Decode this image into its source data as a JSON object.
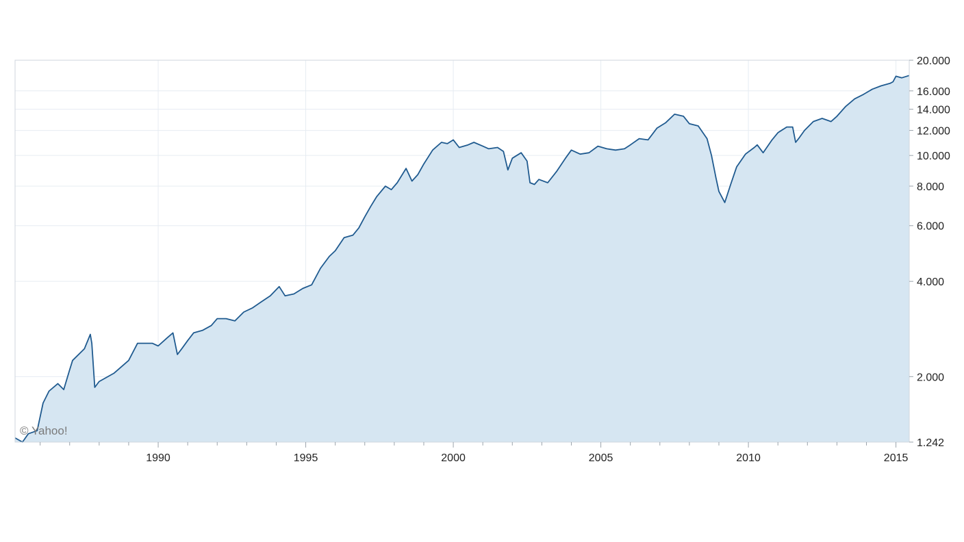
{
  "chart_data": {
    "type": "area",
    "title": "",
    "xlabel": "",
    "ylabel": "",
    "y_scale": "log",
    "xlim": [
      1985.15,
      2015.45
    ],
    "ylim": [
      1.242,
      20.0
    ],
    "grid": true,
    "legend": "none",
    "watermark": "© Yahoo!",
    "colors": {
      "line": "#1f5a8f",
      "fill": "#d6e6f2",
      "grid": "#e6ecf2",
      "axis": "#cfd6dd",
      "text": "#222222"
    },
    "x_ticks": [
      {
        "value": 1990,
        "label": "1990"
      },
      {
        "value": 1995,
        "label": "1995"
      },
      {
        "value": 2000,
        "label": "2000"
      },
      {
        "value": 2005,
        "label": "2005"
      },
      {
        "value": 2010,
        "label": "2010"
      },
      {
        "value": 2015,
        "label": "2015"
      }
    ],
    "y_ticks": [
      {
        "value": 20.0,
        "label": "20.000"
      },
      {
        "value": 16.0,
        "label": "16.000"
      },
      {
        "value": 14.0,
        "label": "14.000"
      },
      {
        "value": 12.0,
        "label": "12.000"
      },
      {
        "value": 10.0,
        "label": "10.000"
      },
      {
        "value": 8.0,
        "label": "8.000"
      },
      {
        "value": 6.0,
        "label": "6.000"
      },
      {
        "value": 4.0,
        "label": "4.000"
      },
      {
        "value": 2.0,
        "label": "2.000"
      },
      {
        "value": 1.242,
        "label": "1.242"
      }
    ],
    "series": [
      {
        "x": [
          1985.15,
          1985.4,
          1985.6,
          1985.9,
          1986.1,
          1986.3,
          1986.6,
          1986.8,
          1987.0,
          1987.1,
          1987.5,
          1987.7,
          1987.75,
          1987.85,
          1988.0,
          1988.5,
          1989.0,
          1989.3,
          1989.8,
          1990.0,
          1990.3,
          1990.5,
          1990.65,
          1990.8,
          1991.0,
          1991.2,
          1991.5,
          1991.8,
          1992.0,
          1992.3,
          1992.6,
          1992.9,
          1993.2,
          1993.5,
          1993.8,
          1994.1,
          1994.3,
          1994.6,
          1994.9,
          1995.2,
          1995.5,
          1995.8,
          1996.0,
          1996.3,
          1996.6,
          1996.8,
          1997.0,
          1997.2,
          1997.4,
          1997.7,
          1997.9,
          1998.1,
          1998.4,
          1998.6,
          1998.8,
          1999.0,
          1999.3,
          1999.6,
          1999.8,
          2000.0,
          2000.2,
          2000.5,
          2000.7,
          2001.0,
          2001.2,
          2001.5,
          2001.7,
          2001.85,
          2002.0,
          2002.3,
          2002.5,
          2002.6,
          2002.75,
          2002.9,
          2003.2,
          2003.5,
          2003.8,
          2004.0,
          2004.3,
          2004.6,
          2004.9,
          2005.2,
          2005.5,
          2005.8,
          2006.0,
          2006.3,
          2006.6,
          2006.9,
          2007.2,
          2007.5,
          2007.8,
          2008.0,
          2008.3,
          2008.6,
          2008.75,
          2008.9,
          2009.0,
          2009.2,
          2009.4,
          2009.6,
          2009.9,
          2010.2,
          2010.3,
          2010.5,
          2010.8,
          2011.0,
          2011.3,
          2011.5,
          2011.6,
          2011.7,
          2011.9,
          2012.2,
          2012.5,
          2012.8,
          2013.0,
          2013.3,
          2013.6,
          2013.9,
          2014.2,
          2014.5,
          2014.8,
          2014.9,
          2015.0,
          2015.2,
          2015.45
        ],
        "values": [
          1.28,
          1.242,
          1.32,
          1.35,
          1.65,
          1.8,
          1.9,
          1.82,
          2.1,
          2.25,
          2.45,
          2.72,
          2.55,
          1.85,
          1.93,
          2.05,
          2.25,
          2.55,
          2.55,
          2.5,
          2.65,
          2.75,
          2.35,
          2.45,
          2.6,
          2.75,
          2.8,
          2.9,
          3.05,
          3.05,
          3.0,
          3.2,
          3.3,
          3.45,
          3.6,
          3.85,
          3.6,
          3.65,
          3.8,
          3.9,
          4.4,
          4.8,
          5.0,
          5.5,
          5.6,
          5.9,
          6.4,
          6.9,
          7.4,
          8.0,
          7.8,
          8.2,
          9.1,
          8.3,
          8.7,
          9.4,
          10.4,
          11.0,
          10.9,
          11.2,
          10.6,
          10.8,
          11.0,
          10.7,
          10.5,
          10.6,
          10.3,
          9.0,
          9.8,
          10.2,
          9.6,
          8.2,
          8.1,
          8.4,
          8.2,
          8.9,
          9.8,
          10.4,
          10.1,
          10.2,
          10.7,
          10.5,
          10.4,
          10.5,
          10.8,
          11.3,
          11.2,
          12.2,
          12.7,
          13.5,
          13.3,
          12.6,
          12.4,
          11.3,
          10.0,
          8.5,
          7.7,
          7.1,
          8.1,
          9.2,
          10.1,
          10.6,
          10.8,
          10.2,
          11.2,
          11.8,
          12.3,
          12.3,
          11.0,
          11.3,
          12.0,
          12.8,
          13.1,
          12.8,
          13.3,
          14.3,
          15.1,
          15.6,
          16.2,
          16.6,
          16.9,
          17.1,
          17.8,
          17.6,
          17.9
        ]
      }
    ]
  }
}
